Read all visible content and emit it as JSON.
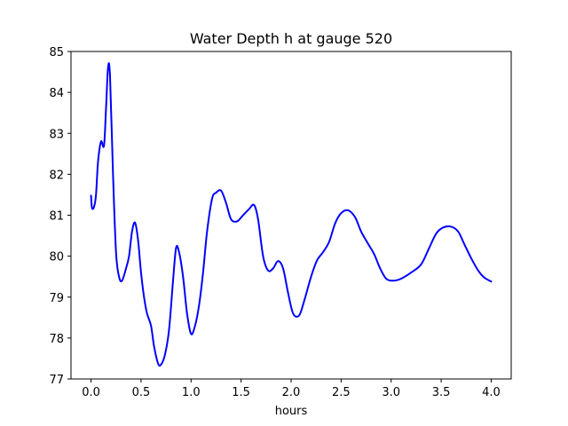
{
  "chart_data": {
    "type": "line",
    "title": "Water Depth h at gauge 520",
    "xlabel": "hours",
    "ylabel": "",
    "xlim": [
      -0.2,
      4.2
    ],
    "ylim": [
      77,
      85
    ],
    "xticks": [
      0.0,
      0.5,
      1.0,
      1.5,
      2.0,
      2.5,
      3.0,
      3.5,
      4.0
    ],
    "xtick_labels": [
      "0.0",
      "0.5",
      "1.0",
      "1.5",
      "2.0",
      "2.5",
      "3.0",
      "3.5",
      "4.0"
    ],
    "yticks": [
      77,
      78,
      79,
      80,
      81,
      82,
      83,
      84,
      85
    ],
    "ytick_labels": [
      "77",
      "78",
      "79",
      "80",
      "81",
      "82",
      "83",
      "84",
      "85"
    ],
    "grid": false,
    "legend": "none",
    "series": [
      {
        "color": "#0000ff",
        "points": [
          [
            0.0,
            81.48
          ],
          [
            0.01,
            81.18
          ],
          [
            0.03,
            81.2
          ],
          [
            0.05,
            81.5
          ],
          [
            0.07,
            82.3
          ],
          [
            0.1,
            82.8
          ],
          [
            0.13,
            82.7
          ],
          [
            0.15,
            83.6
          ],
          [
            0.17,
            84.6
          ],
          [
            0.19,
            84.4
          ],
          [
            0.22,
            82.0
          ],
          [
            0.25,
            80.1
          ],
          [
            0.28,
            79.5
          ],
          [
            0.31,
            79.4
          ],
          [
            0.35,
            79.7
          ],
          [
            0.38,
            80.0
          ],
          [
            0.41,
            80.6
          ],
          [
            0.44,
            80.82
          ],
          [
            0.47,
            80.4
          ],
          [
            0.5,
            79.6
          ],
          [
            0.53,
            79.0
          ],
          [
            0.56,
            78.6
          ],
          [
            0.6,
            78.3
          ],
          [
            0.63,
            77.8
          ],
          [
            0.67,
            77.38
          ],
          [
            0.7,
            77.35
          ],
          [
            0.74,
            77.6
          ],
          [
            0.78,
            78.2
          ],
          [
            0.82,
            79.4
          ],
          [
            0.85,
            80.2
          ],
          [
            0.88,
            80.1
          ],
          [
            0.92,
            79.5
          ],
          [
            0.96,
            78.6
          ],
          [
            1.0,
            78.1
          ],
          [
            1.04,
            78.3
          ],
          [
            1.08,
            78.8
          ],
          [
            1.12,
            79.6
          ],
          [
            1.16,
            80.6
          ],
          [
            1.21,
            81.4
          ],
          [
            1.25,
            81.55
          ],
          [
            1.3,
            81.6
          ],
          [
            1.35,
            81.3
          ],
          [
            1.4,
            80.9
          ],
          [
            1.46,
            80.85
          ],
          [
            1.52,
            81.0
          ],
          [
            1.58,
            81.15
          ],
          [
            1.63,
            81.25
          ],
          [
            1.67,
            80.9
          ],
          [
            1.72,
            80.0
          ],
          [
            1.77,
            79.65
          ],
          [
            1.82,
            79.7
          ],
          [
            1.87,
            79.88
          ],
          [
            1.92,
            79.7
          ],
          [
            1.97,
            79.1
          ],
          [
            2.02,
            78.6
          ],
          [
            2.08,
            78.55
          ],
          [
            2.13,
            78.9
          ],
          [
            2.2,
            79.5
          ],
          [
            2.26,
            79.9
          ],
          [
            2.32,
            80.1
          ],
          [
            2.38,
            80.35
          ],
          [
            2.44,
            80.8
          ],
          [
            2.5,
            81.05
          ],
          [
            2.57,
            81.12
          ],
          [
            2.64,
            80.95
          ],
          [
            2.7,
            80.6
          ],
          [
            2.77,
            80.3
          ],
          [
            2.83,
            80.05
          ],
          [
            2.89,
            79.7
          ],
          [
            2.95,
            79.45
          ],
          [
            3.02,
            79.4
          ],
          [
            3.1,
            79.45
          ],
          [
            3.2,
            79.6
          ],
          [
            3.3,
            79.8
          ],
          [
            3.38,
            80.2
          ],
          [
            3.45,
            80.55
          ],
          [
            3.52,
            80.7
          ],
          [
            3.6,
            80.72
          ],
          [
            3.67,
            80.6
          ],
          [
            3.73,
            80.3
          ],
          [
            3.8,
            79.95
          ],
          [
            3.87,
            79.65
          ],
          [
            3.93,
            79.48
          ],
          [
            4.0,
            79.38
          ]
        ]
      }
    ]
  }
}
